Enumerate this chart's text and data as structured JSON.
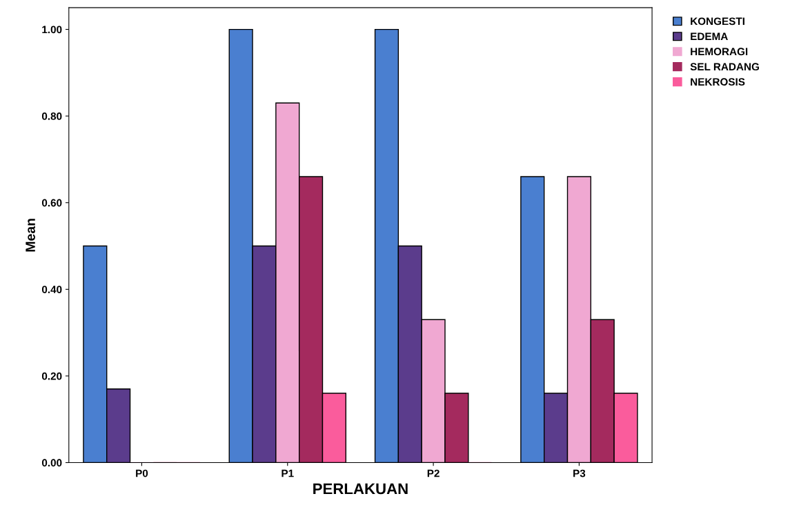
{
  "chart_data": {
    "type": "bar",
    "xlabel": "PERLAKUAN",
    "ylabel": "Mean",
    "categories": [
      "P0",
      "P1",
      "P2",
      "P3"
    ],
    "series": [
      {
        "name": "KONGESTI",
        "color": "#4a7fd0",
        "values": [
          0.5,
          1.0,
          1.0,
          0.66
        ]
      },
      {
        "name": "EDEMA",
        "color": "#5b3c8c",
        "values": [
          0.17,
          0.5,
          0.5,
          0.16
        ]
      },
      {
        "name": "HEMORAGI",
        "color": "#f0a8d2",
        "values": [
          0,
          0.83,
          0.33,
          0.66
        ]
      },
      {
        "name": "SEL RADANG",
        "color": "#a42a5e",
        "values": [
          0,
          0.66,
          0.16,
          0.33
        ]
      },
      {
        "name": "NEKROSIS",
        "color": "#fa5c9c",
        "values": [
          0,
          0.16,
          0,
          0.16
        ]
      }
    ],
    "ylim": [
      0,
      1.05
    ],
    "yticks": [
      {
        "value": 0,
        "label": "0.00"
      },
      {
        "value": 0.2,
        "label": "0.20"
      },
      {
        "value": 0.4,
        "label": "0.40"
      },
      {
        "value": 0.6,
        "label": "0.60"
      },
      {
        "value": 0.8,
        "label": "0.80"
      },
      {
        "value": 1.0,
        "label": "1.00"
      }
    ],
    "grid": false,
    "legend": "top right"
  }
}
